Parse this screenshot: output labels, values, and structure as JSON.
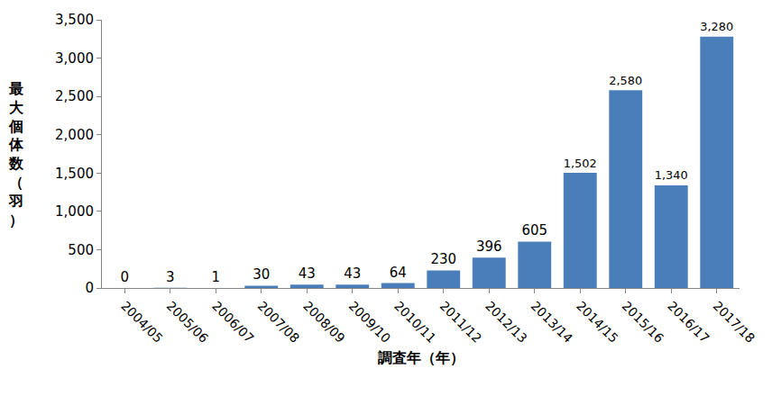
{
  "chart_data": {
    "type": "bar",
    "xlabel": "調査年（年）",
    "ylabel": "最大個体数（羽）",
    "categories": [
      "2004/05",
      "2005/06",
      "2006/07",
      "2007/08",
      "2008/09",
      "2009/10",
      "2010/11",
      "2011/12",
      "2012/13",
      "2013/14",
      "2014/15",
      "2015/16",
      "2016/17",
      "2017/18"
    ],
    "values": [
      0,
      3,
      1,
      30,
      43,
      43,
      64,
      230,
      396,
      605,
      1502,
      2580,
      1340,
      3280
    ],
    "value_labels": [
      "0",
      "3",
      "1",
      "30",
      "43",
      "43",
      "64",
      "230",
      "396",
      "605",
      "1,502",
      "2,580",
      "1,340",
      "3,280"
    ],
    "data_labels": true,
    "color": "#4a7ebb",
    "ylim": [
      0,
      3500
    ],
    "yticks": [
      0,
      500,
      {
        "value": 1000,
        "label": "1,000"
      },
      {
        "value": 1500,
        "label": "1,500"
      },
      {
        "value": 2000,
        "label": "2,000"
      },
      {
        "value": 2500,
        "label": "2,500"
      },
      {
        "value": 3000,
        "label": "3,000"
      },
      {
        "value": 3500,
        "label": "3,500"
      }
    ],
    "grid": false
  }
}
